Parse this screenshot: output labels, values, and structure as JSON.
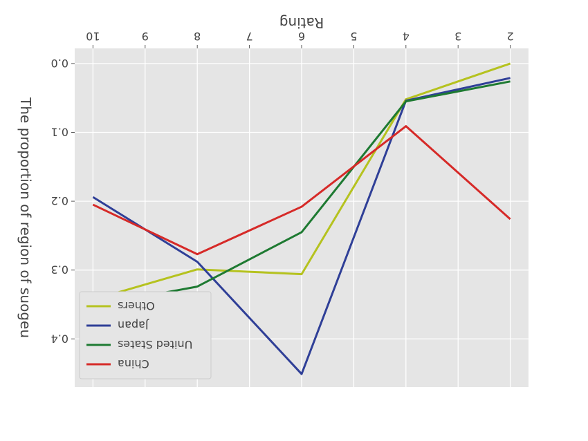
{
  "chart_data": {
    "type": "line",
    "xlabel": "Rating",
    "ylabel": "The proportion of region of suogeu",
    "x": [
      2,
      4,
      6,
      8,
      10
    ],
    "x_ticks": [
      "2",
      "3",
      "4",
      "5",
      "6",
      "7",
      "8",
      "9",
      "10"
    ],
    "y_ticks": [
      "0.0",
      "0.1",
      "0.2",
      "0.3",
      "0.4"
    ],
    "xlim": [
      1.65,
      10.35
    ],
    "ylim": [
      -0.022,
      0.47
    ],
    "y_inverted": true,
    "grid": true,
    "legend": "bottom-left",
    "series": [
      {
        "name": "Others",
        "color": "#b5c21f",
        "values": [
          0.0,
          0.052,
          0.306,
          0.299,
          0.343
        ]
      },
      {
        "name": "Japan",
        "color": "#2f3f97",
        "values": [
          0.021,
          0.054,
          0.451,
          0.288,
          0.194
        ]
      },
      {
        "name": "United States",
        "color": "#1e7a32",
        "values": [
          0.026,
          0.055,
          0.245,
          0.324,
          0.352
        ]
      },
      {
        "name": "China",
        "color": "#d62a28",
        "values": [
          0.226,
          0.091,
          0.208,
          0.277,
          0.205
        ]
      }
    ]
  }
}
